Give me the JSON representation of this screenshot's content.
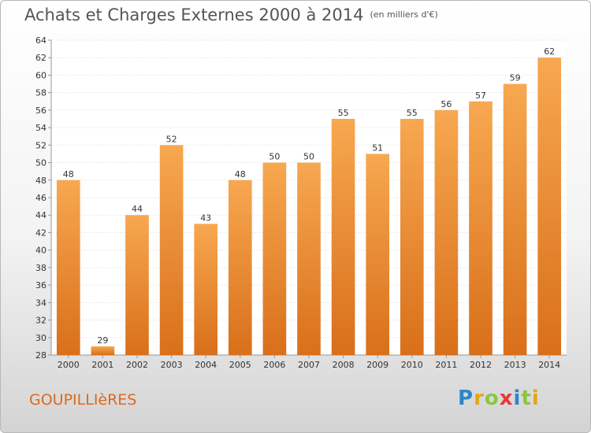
{
  "header": {
    "title": "Achats et Charges Externes 2000 à 2014",
    "unit": "(en milliers d'€)"
  },
  "footer": {
    "city": "GOUPILLIèRES",
    "logo": "Proxiti"
  },
  "colors": {
    "bar_light": "#f7a850",
    "bar_dark": "#d96f1a",
    "grid": "#dddddd",
    "text": "#333333",
    "city": "#d96a1e"
  },
  "chart_data": {
    "type": "bar",
    "categories": [
      "2000",
      "2001",
      "2002",
      "2003",
      "2004",
      "2005",
      "2006",
      "2007",
      "2008",
      "2009",
      "2010",
      "2011",
      "2012",
      "2013",
      "2014"
    ],
    "values": [
      48,
      29,
      44,
      52,
      43,
      48,
      50,
      50,
      55,
      51,
      55,
      56,
      57,
      59,
      62
    ],
    "title": "Achats et Charges Externes 2000 à 2014",
    "subtitle": "(en milliers d'€)",
    "xlabel": "",
    "ylabel": "",
    "ylim": [
      28,
      64
    ],
    "ytick_step": 2,
    "grid": true,
    "data_labels": true
  }
}
